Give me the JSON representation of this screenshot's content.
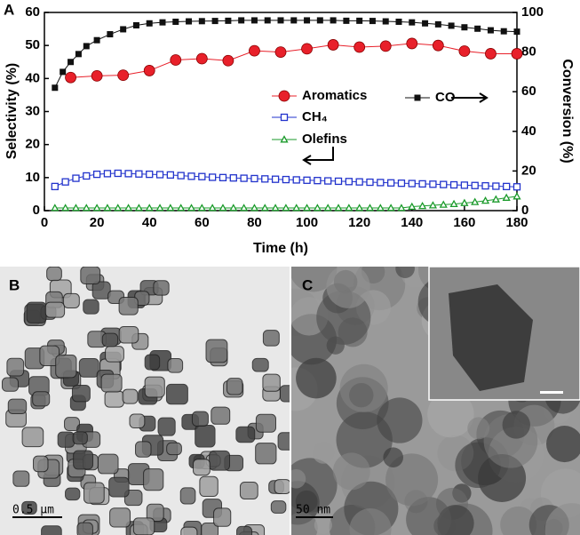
{
  "chart_data": {
    "type": "line",
    "panel_label": "A",
    "xlabel": "Time (h)",
    "ylabel": "Selectivity (%)",
    "y2label": "Conversion (%)",
    "xlim": [
      0,
      180
    ],
    "xticks": [
      0,
      20,
      40,
      60,
      80,
      100,
      120,
      140,
      160,
      180
    ],
    "ylim": [
      0,
      60
    ],
    "yticks": [
      0,
      10,
      20,
      30,
      40,
      50,
      60
    ],
    "y2lim": [
      0,
      100
    ],
    "y2ticks": [
      0,
      20,
      40,
      60,
      80,
      100
    ],
    "series": [
      {
        "name": "Aromatics",
        "color": "#e8202a",
        "marker": "circle",
        "x": [
          10,
          20,
          30,
          40,
          50,
          60,
          70,
          80,
          90,
          100,
          110,
          120,
          130,
          140,
          150,
          160,
          170,
          180
        ],
        "values": [
          40.3,
          40.8,
          41,
          42.4,
          45.6,
          46,
          45.4,
          48.4,
          48,
          49,
          50.2,
          49.5,
          49.8,
          50.6,
          50,
          48.3,
          47.5,
          47.5
        ]
      },
      {
        "name": "CO",
        "color": "#111111",
        "marker": "square",
        "axis": "y2",
        "x": [
          4,
          7,
          10,
          13,
          16,
          20,
          25,
          30,
          35,
          40,
          45,
          50,
          55,
          60,
          65,
          70,
          75,
          80,
          85,
          90,
          95,
          100,
          105,
          110,
          115,
          120,
          125,
          130,
          135,
          140,
          145,
          150,
          155,
          160,
          165,
          170,
          175,
          180
        ],
        "values": [
          62,
          70,
          75,
          79,
          83,
          86,
          89,
          91.5,
          93.5,
          94.5,
          95,
          95.3,
          95.5,
          95.6,
          95.7,
          95.8,
          96,
          96,
          96,
          96,
          96,
          96,
          96,
          96,
          95.8,
          95.8,
          95.7,
          95.5,
          95.3,
          95,
          94.5,
          94,
          93.3,
          92.5,
          91.8,
          91,
          90.5,
          90.3
        ]
      },
      {
        "name": "CH₄",
        "color": "#2233cc",
        "marker": "open-square",
        "x": [
          4,
          8,
          12,
          16,
          20,
          24,
          28,
          32,
          36,
          40,
          44,
          48,
          52,
          56,
          60,
          64,
          68,
          72,
          76,
          80,
          84,
          88,
          92,
          96,
          100,
          104,
          108,
          112,
          116,
          120,
          124,
          128,
          132,
          136,
          140,
          144,
          148,
          152,
          156,
          160,
          164,
          168,
          172,
          176,
          180
        ],
        "values": [
          7.3,
          8.7,
          9.8,
          10.5,
          11,
          11.2,
          11.3,
          11.2,
          11.1,
          11,
          10.9,
          10.8,
          10.6,
          10.4,
          10.3,
          10.1,
          10,
          9.9,
          9.8,
          9.7,
          9.6,
          9.5,
          9.4,
          9.3,
          9.2,
          9.1,
          9,
          8.9,
          8.8,
          8.7,
          8.6,
          8.5,
          8.4,
          8.3,
          8.2,
          8.1,
          8,
          7.9,
          7.8,
          7.7,
          7.6,
          7.5,
          7.4,
          7.3,
          7.2
        ]
      },
      {
        "name": "Olefins",
        "color": "#1a9a2a",
        "marker": "open-triangle",
        "x": [
          4,
          8,
          12,
          16,
          20,
          24,
          28,
          32,
          36,
          40,
          44,
          48,
          52,
          56,
          60,
          64,
          68,
          72,
          76,
          80,
          84,
          88,
          92,
          96,
          100,
          104,
          108,
          112,
          116,
          120,
          124,
          128,
          132,
          136,
          140,
          144,
          148,
          152,
          156,
          160,
          164,
          168,
          172,
          176,
          180
        ],
        "values": [
          0.8,
          0.8,
          0.8,
          0.8,
          0.8,
          0.8,
          0.8,
          0.8,
          0.8,
          0.8,
          0.8,
          0.8,
          0.8,
          0.8,
          0.8,
          0.8,
          0.8,
          0.8,
          0.8,
          0.8,
          0.8,
          0.8,
          0.8,
          0.8,
          0.8,
          0.8,
          0.8,
          0.8,
          0.8,
          0.8,
          0.8,
          0.8,
          0.8,
          0.8,
          1.2,
          1.4,
          1.6,
          1.8,
          2,
          2.3,
          2.6,
          3,
          3.4,
          3.9,
          4.3
        ]
      }
    ]
  },
  "panels": {
    "b": {
      "label": "B",
      "scale_bar": "0.5 μm"
    },
    "c": {
      "label": "C",
      "scale_bar": "50 nm"
    }
  }
}
